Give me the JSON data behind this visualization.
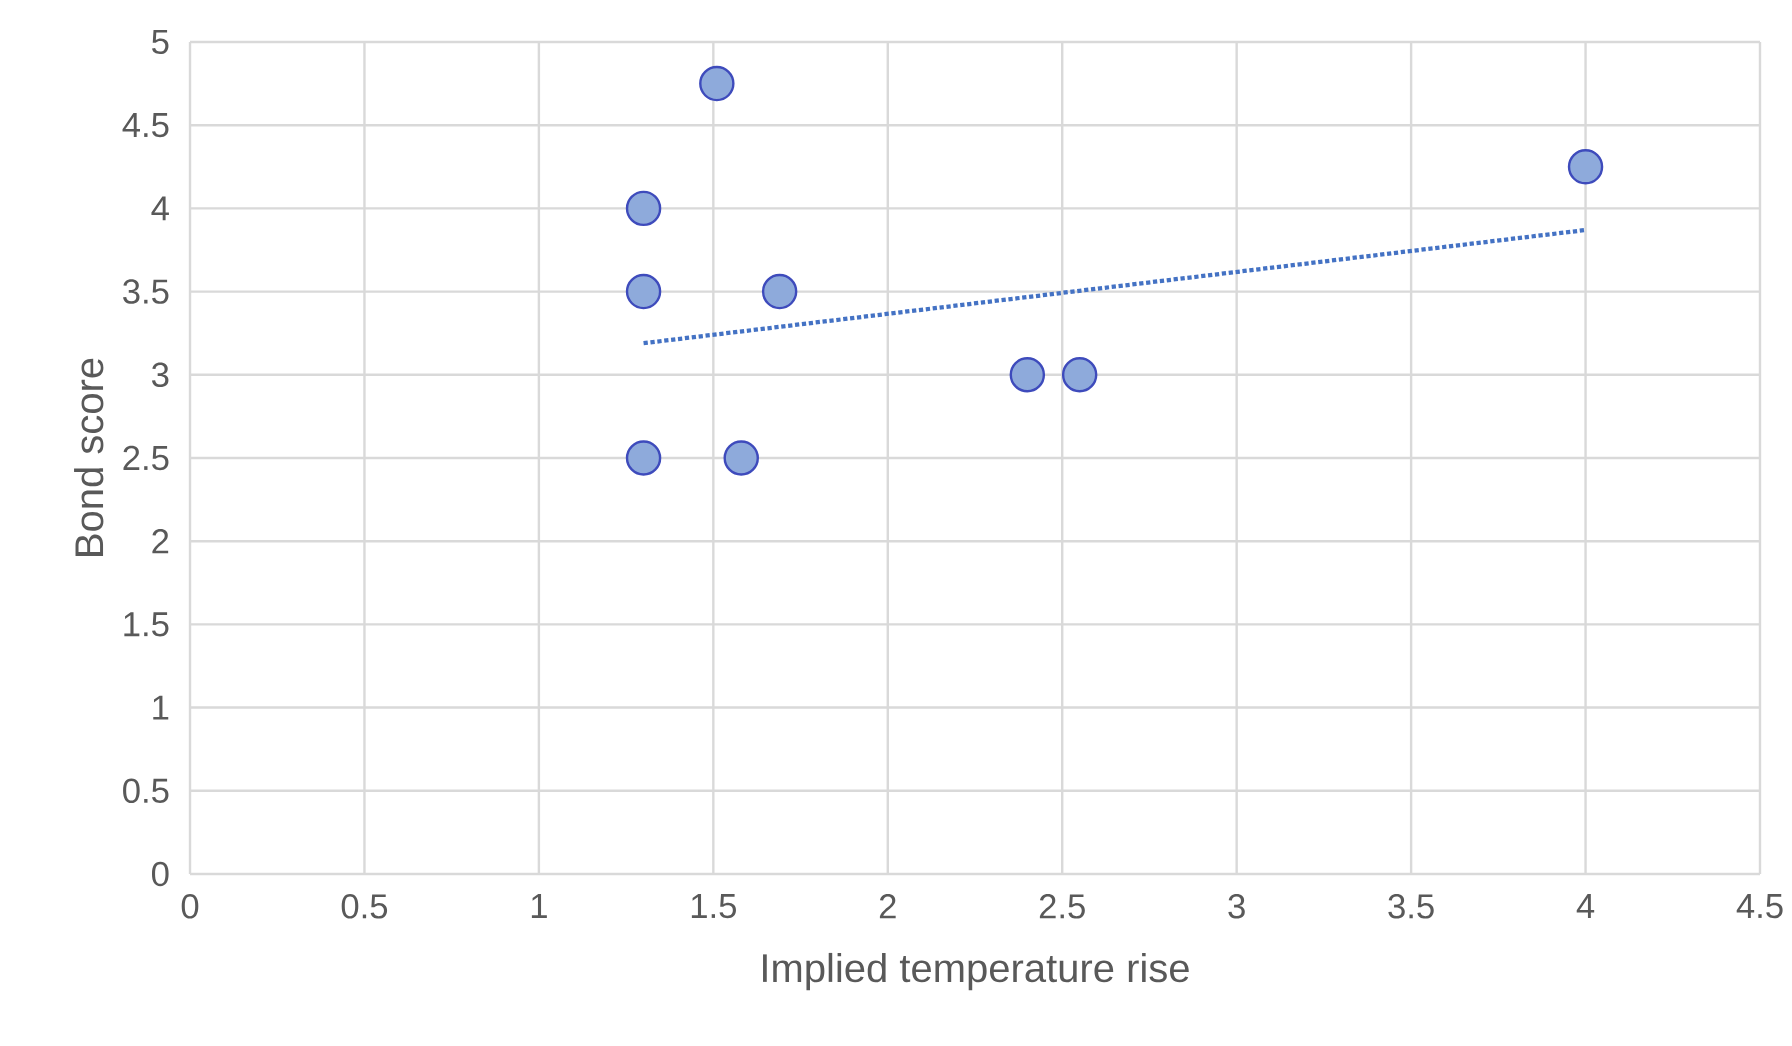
{
  "chart_data": {
    "type": "scatter",
    "xlabel": "Implied temperature rise",
    "ylabel": "Bond score",
    "series": [
      {
        "color": "#8eaadb",
        "marker": "circle",
        "x": [
          1.3,
          1.3,
          1.3,
          1.51,
          1.58,
          1.69,
          2.4,
          2.55,
          4
        ],
        "values": [
          4,
          3.5,
          2.5,
          4.75,
          2.5,
          3.5,
          3,
          3,
          4.25
        ]
      },
      {
        "type": "line",
        "color": "#4472c4",
        "line_style": "dotted",
        "marker": "none",
        "x": [
          1.3,
          4
        ],
        "values": [
          3.19,
          3.87
        ]
      }
    ],
    "xlim": [
      0,
      4.5
    ],
    "ylim": [
      0,
      5
    ],
    "xticks": [
      0,
      0.5,
      1,
      1.5,
      2,
      2.5,
      3,
      3.5,
      4,
      4.5
    ],
    "yticks": [
      0,
      0.5,
      1,
      1.5,
      2,
      2.5,
      3,
      3.5,
      4,
      4.5,
      5
    ],
    "grid": true
  }
}
